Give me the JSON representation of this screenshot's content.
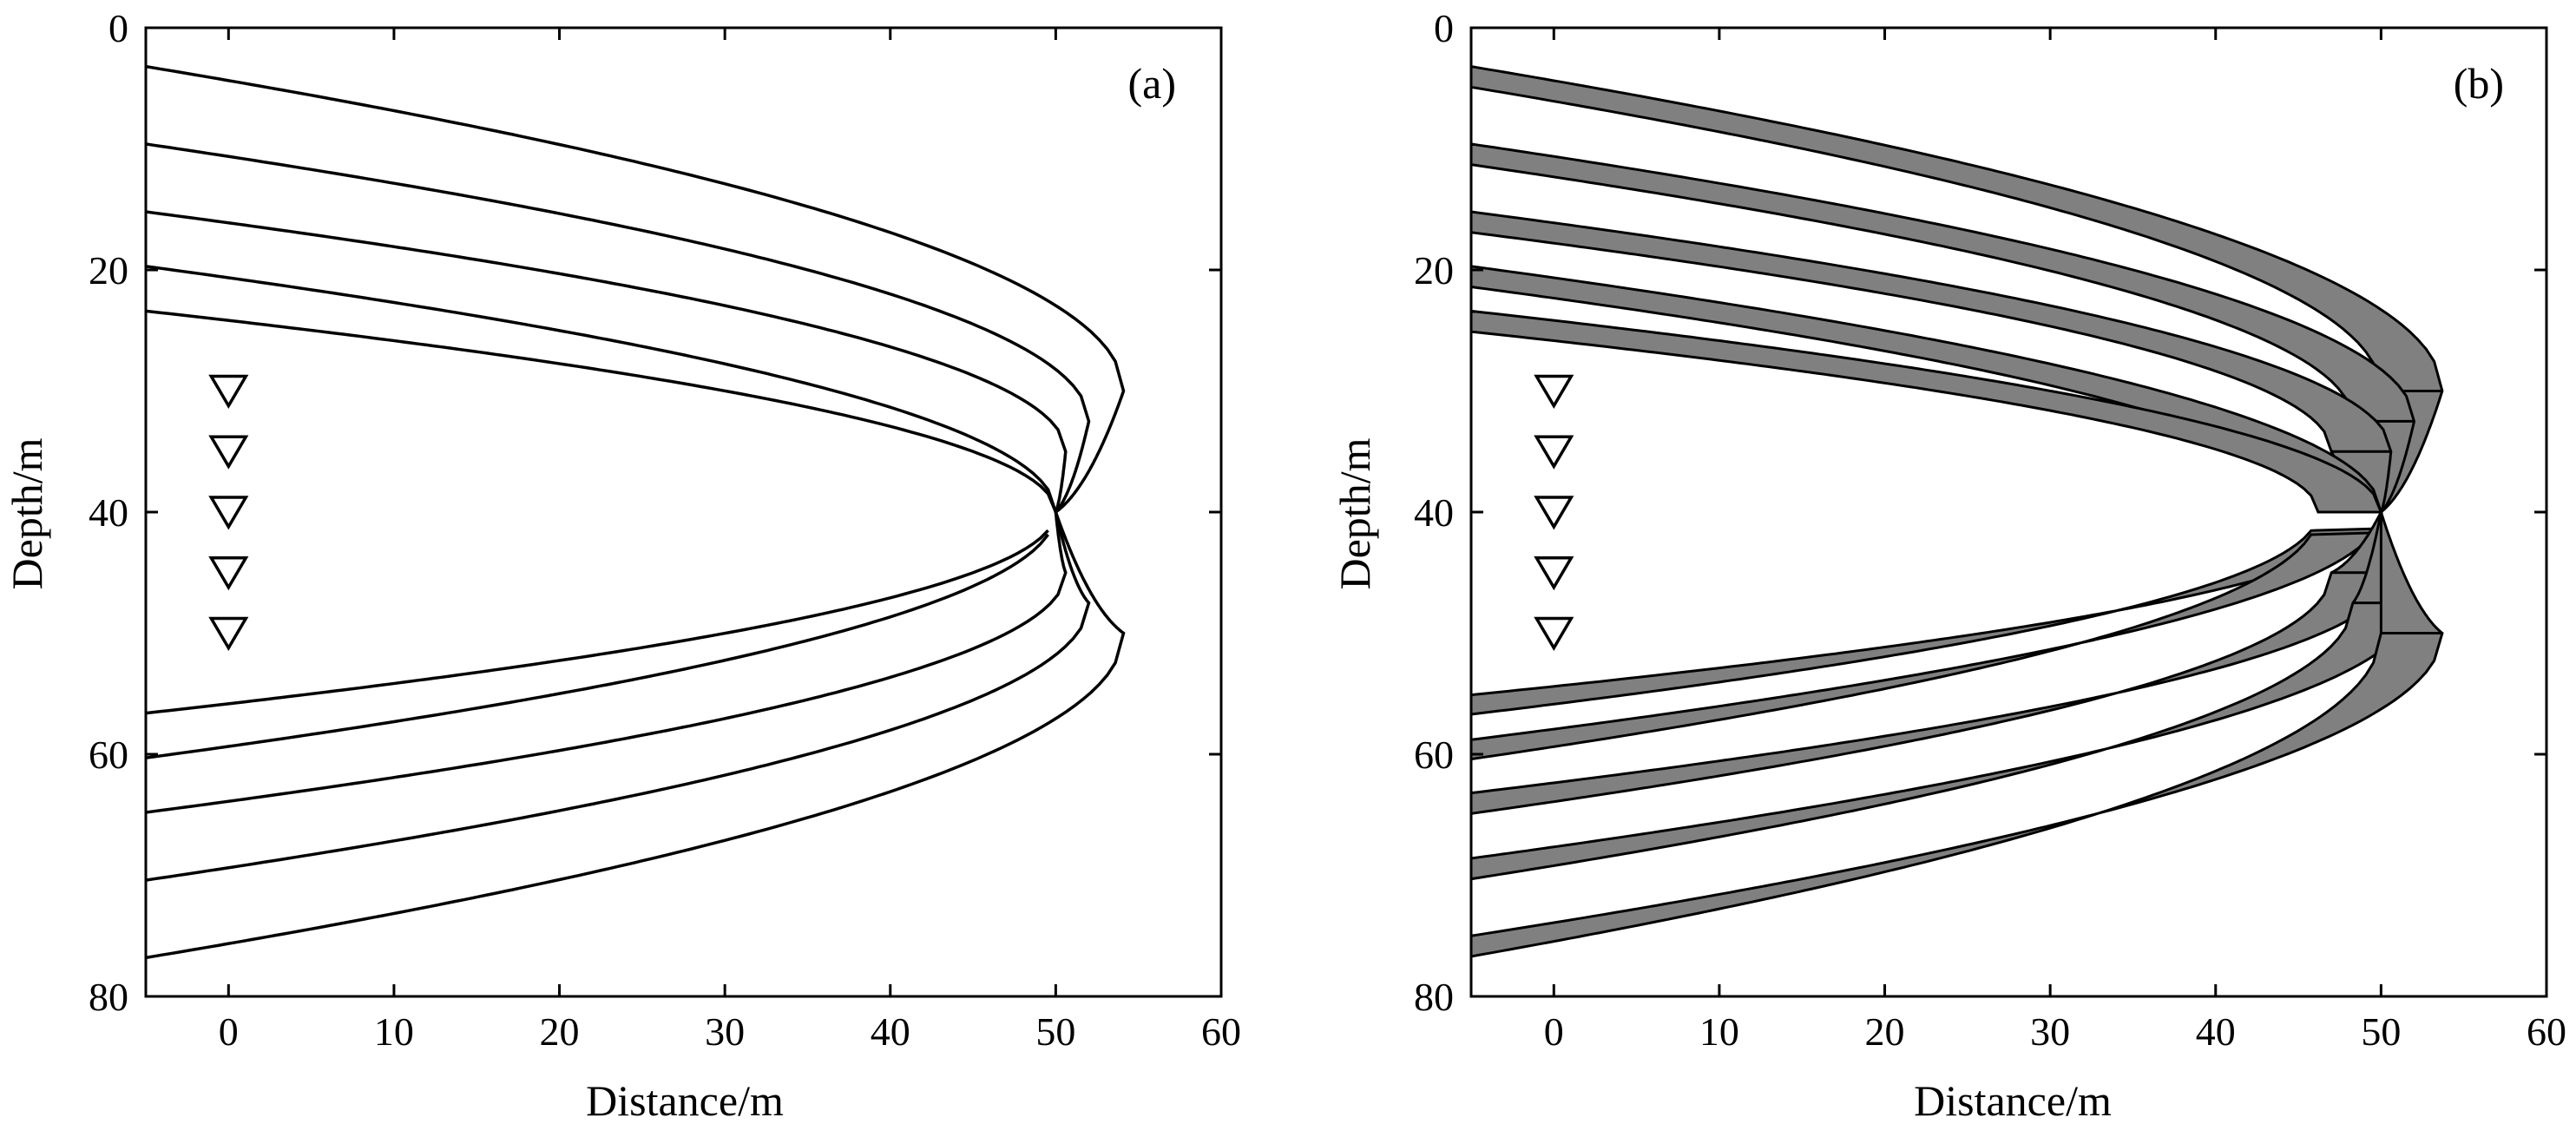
{
  "colors": {
    "band_fill": "#808080",
    "line": "#000000",
    "background": "#ffffff"
  },
  "chart_data": [
    {
      "type": "line",
      "panel_label": "(a)",
      "xlabel": "Distance/m",
      "ylabel": "Depth/m",
      "xlim": [
        -5,
        60
      ],
      "ylim": [
        80,
        0
      ],
      "y_inverted": true,
      "xticks": [
        0,
        10,
        20,
        30,
        40,
        50,
        60
      ],
      "yticks": [
        0,
        20,
        40,
        60,
        80
      ],
      "grid": false,
      "source_point": {
        "x": 50,
        "y": 40
      },
      "receivers": {
        "x": 0,
        "y": [
          30,
          35,
          40,
          45,
          50
        ]
      },
      "upper_curves": [
        {
          "y_at_x0": 3.2,
          "max_x": 54.1,
          "max_x_depth": 30.0
        },
        {
          "y_at_x0": 9.6,
          "max_x": 52.0,
          "max_x_depth": 32.5
        },
        {
          "y_at_x0": 15.2,
          "max_x": 50.6,
          "max_x_depth": 35.0
        },
        {
          "y_at_x0": 19.7,
          "max_x": 50.0,
          "max_x_depth": 40.0
        },
        {
          "y_at_x0": 23.4,
          "max_x": 50.0,
          "max_x_depth": 40.0
        }
      ],
      "lower_curves": [
        {
          "y_at_x0": 56.6,
          "max_x": 50.0,
          "max_x_depth": 40.0
        },
        {
          "y_at_x0": 60.3,
          "max_x": 50.0,
          "max_x_depth": 40.0
        },
        {
          "y_at_x0": 64.8,
          "max_x": 50.6,
          "max_x_depth": 45.0
        },
        {
          "y_at_x0": 70.4,
          "max_x": 52.0,
          "max_x_depth": 47.5
        },
        {
          "y_at_x0": 76.8,
          "max_x": 54.1,
          "max_x_depth": 50.0
        }
      ]
    },
    {
      "type": "area",
      "panel_label": "(b)",
      "xlabel": "Distance/m",
      "ylabel": "Depth/m",
      "xlim": [
        -5,
        60
      ],
      "ylim": [
        80,
        0
      ],
      "y_inverted": true,
      "xticks": [
        0,
        10,
        20,
        30,
        40,
        50,
        60
      ],
      "yticks": [
        0,
        20,
        40,
        60,
        80
      ],
      "grid": false,
      "receivers": {
        "x": 0,
        "y": [
          30,
          35,
          40,
          45,
          50
        ]
      },
      "upper_bands": [
        {
          "outer": {
            "y_at_x0": 3.2,
            "max_x": 53.7,
            "max_x_depth": 30.0
          },
          "inner": {
            "y_at_x0": 4.9,
            "max_x": 50.0,
            "max_x_depth": 30.0
          }
        },
        {
          "outer": {
            "y_at_x0": 9.6,
            "max_x": 52.0,
            "max_x_depth": 32.5
          },
          "inner": {
            "y_at_x0": 11.3,
            "max_x": 48.3,
            "max_x_depth": 32.5
          }
        },
        {
          "outer": {
            "y_at_x0": 15.2,
            "max_x": 50.6,
            "max_x_depth": 35.0
          },
          "inner": {
            "y_at_x0": 16.9,
            "max_x": 47.0,
            "max_x_depth": 35.0
          }
        },
        {
          "outer": {
            "y_at_x0": 19.7,
            "max_x": 50.0,
            "max_x_depth": 40.0
          },
          "inner": {
            "y_at_x0": 21.4,
            "max_x": 46.2,
            "max_x_depth": 40.0
          }
        },
        {
          "outer": {
            "y_at_x0": 23.4,
            "max_x": 50.0,
            "max_x_depth": 40.0
          },
          "inner": {
            "y_at_x0": 25.1,
            "max_x": 46.2,
            "max_x_depth": 40.0
          }
        }
      ],
      "lower_bands": [
        {
          "outer": {
            "y_at_x0": 55.1,
            "max_x": 50.0,
            "max_x_depth": 40.0
          },
          "inner": {
            "y_at_x0": 56.7,
            "max_x": 46.2,
            "max_x_depth": 40.0
          }
        },
        {
          "outer": {
            "y_at_x0": 58.8,
            "max_x": 50.0,
            "max_x_depth": 40.0
          },
          "inner": {
            "y_at_x0": 60.4,
            "max_x": 46.2,
            "max_x_depth": 40.0
          }
        },
        {
          "outer": {
            "y_at_x0": 63.2,
            "max_x": 50.6,
            "max_x_depth": 45.0
          },
          "inner": {
            "y_at_x0": 64.9,
            "max_x": 47.0,
            "max_x_depth": 45.0
          }
        },
        {
          "outer": {
            "y_at_x0": 68.6,
            "max_x": 52.0,
            "max_x_depth": 47.5
          },
          "inner": {
            "y_at_x0": 70.3,
            "max_x": 48.3,
            "max_x_depth": 47.5
          }
        },
        {
          "outer": {
            "y_at_x0": 75.0,
            "max_x": 53.7,
            "max_x_depth": 50.0
          },
          "inner": {
            "y_at_x0": 76.7,
            "max_x": 50.0,
            "max_x_depth": 50.0
          }
        }
      ]
    }
  ]
}
